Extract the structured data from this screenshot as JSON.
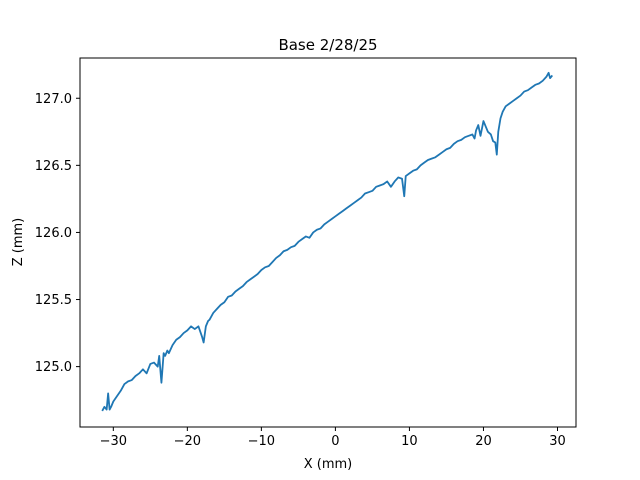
{
  "chart_data": {
    "type": "line",
    "title": "Base 2/28/25",
    "xlabel": "X (mm)",
    "ylabel": "Z (mm)",
    "xlim": [
      -34.5,
      32.5
    ],
    "ylim": [
      124.55,
      127.3
    ],
    "xticks": [
      -30,
      -20,
      -10,
      0,
      10,
      20,
      30
    ],
    "xtick_labels": [
      "−30",
      "−20",
      "−10",
      "0",
      "10",
      "20",
      "30"
    ],
    "yticks": [
      125.0,
      125.5,
      126.0,
      126.5,
      127.0
    ],
    "ytick_labels": [
      "125.0",
      "125.5",
      "126.0",
      "126.5",
      "127.0"
    ],
    "grid": false,
    "series": [
      {
        "color": "#1f77b4",
        "x": [
          -31.5,
          -31.2,
          -30.9,
          -30.7,
          -30.5,
          -30.3,
          -30.0,
          -29.5,
          -29.0,
          -28.5,
          -28.0,
          -27.5,
          -27.0,
          -26.5,
          -26.0,
          -25.5,
          -25.0,
          -24.5,
          -24.0,
          -23.8,
          -23.5,
          -23.2,
          -23.0,
          -22.7,
          -22.5,
          -22.0,
          -21.5,
          -21.0,
          -20.5,
          -20.0,
          -19.5,
          -19.0,
          -18.5,
          -18.0,
          -17.8,
          -17.5,
          -17.2,
          -17.0,
          -16.5,
          -16.0,
          -15.5,
          -15.0,
          -14.5,
          -14.0,
          -13.5,
          -13.0,
          -12.5,
          -12.0,
          -11.5,
          -11.0,
          -10.5,
          -10.0,
          -9.5,
          -9.0,
          -8.5,
          -8.0,
          -7.5,
          -7.0,
          -6.5,
          -6.0,
          -5.5,
          -5.0,
          -4.5,
          -4.0,
          -3.5,
          -3.0,
          -2.5,
          -2.0,
          -1.5,
          -1.0,
          -0.5,
          0.0,
          0.5,
          1.0,
          1.5,
          2.0,
          2.5,
          3.0,
          3.5,
          4.0,
          4.5,
          5.0,
          5.5,
          6.0,
          6.5,
          7.0,
          7.5,
          8.0,
          8.5,
          9.0,
          9.3,
          9.5,
          10.0,
          10.5,
          11.0,
          11.5,
          12.0,
          12.5,
          13.0,
          13.5,
          14.0,
          14.5,
          15.0,
          15.5,
          16.0,
          16.5,
          17.0,
          17.5,
          18.0,
          18.5,
          18.8,
          19.0,
          19.3,
          19.6,
          20.0,
          20.3,
          20.6,
          21.0,
          21.3,
          21.6,
          21.8,
          22.0,
          22.3,
          22.6,
          23.0,
          23.5,
          24.0,
          24.5,
          25.0,
          25.5,
          26.0,
          26.5,
          27.0,
          27.5,
          28.0,
          28.5,
          28.8,
          29.0,
          29.3
        ],
        "y": [
          124.67,
          124.7,
          124.68,
          124.8,
          124.68,
          124.7,
          124.74,
          124.78,
          124.82,
          124.87,
          124.89,
          124.9,
          124.93,
          124.95,
          124.98,
          124.95,
          125.02,
          125.03,
          125.0,
          125.08,
          124.88,
          125.1,
          125.08,
          125.12,
          125.1,
          125.16,
          125.2,
          125.22,
          125.25,
          125.27,
          125.3,
          125.28,
          125.3,
          125.22,
          125.18,
          125.3,
          125.34,
          125.35,
          125.4,
          125.43,
          125.46,
          125.48,
          125.52,
          125.53,
          125.56,
          125.58,
          125.6,
          125.63,
          125.65,
          125.67,
          125.69,
          125.72,
          125.74,
          125.75,
          125.78,
          125.81,
          125.83,
          125.86,
          125.87,
          125.89,
          125.9,
          125.93,
          125.95,
          125.97,
          125.96,
          126.0,
          126.02,
          126.03,
          126.06,
          126.08,
          126.1,
          126.12,
          126.14,
          126.16,
          126.18,
          126.2,
          126.22,
          126.24,
          126.26,
          126.29,
          126.3,
          126.31,
          126.34,
          126.35,
          126.36,
          126.38,
          126.34,
          126.38,
          126.41,
          126.4,
          126.27,
          126.42,
          126.44,
          126.46,
          126.47,
          126.5,
          126.52,
          126.54,
          126.55,
          126.56,
          126.58,
          126.6,
          126.62,
          126.63,
          126.66,
          126.68,
          126.69,
          126.71,
          126.72,
          126.73,
          126.7,
          126.76,
          126.8,
          126.72,
          126.83,
          126.79,
          126.75,
          126.73,
          126.68,
          126.67,
          126.58,
          126.75,
          126.85,
          126.9,
          126.94,
          126.96,
          126.98,
          127.0,
          127.02,
          127.05,
          127.06,
          127.08,
          127.1,
          127.11,
          127.13,
          127.16,
          127.19,
          127.15,
          127.17
        ]
      }
    ]
  }
}
